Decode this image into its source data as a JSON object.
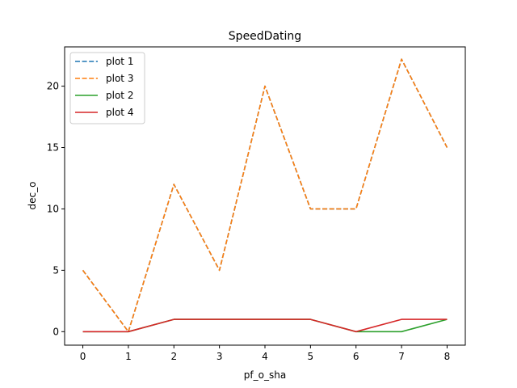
{
  "chart_data": {
    "type": "line",
    "title": "SpeedDating",
    "xlabel": "pf_o_sha",
    "ylabel": "dec_o",
    "x": [
      0,
      1,
      2,
      3,
      4,
      5,
      6,
      7,
      8
    ],
    "xlim": [
      -0.4,
      8.4
    ],
    "ylim": [
      -1.1,
      23.2
    ],
    "xticks": [
      0,
      1,
      2,
      3,
      4,
      5,
      6,
      7,
      8
    ],
    "yticks": [
      0,
      5,
      10,
      15,
      20
    ],
    "grid": false,
    "legend_position": "top-left",
    "series": [
      {
        "name": "plot 1",
        "color": "#1f77b4",
        "dash": "dashed",
        "values": [
          5,
          0,
          12,
          5,
          20,
          10,
          10,
          22.2,
          15
        ]
      },
      {
        "name": "plot 3",
        "color": "#ff7f0e",
        "dash": "dashed",
        "values": [
          5,
          0,
          12,
          5,
          20,
          10,
          10,
          22.2,
          15
        ]
      },
      {
        "name": "plot 2",
        "color": "#2ca02c",
        "dash": "solid",
        "values": [
          0,
          0,
          1,
          1,
          1,
          1,
          0,
          0,
          1
        ]
      },
      {
        "name": "plot 4",
        "color": "#d62728",
        "dash": "solid",
        "values": [
          0,
          0,
          1,
          1,
          1,
          1,
          0,
          1,
          1
        ]
      }
    ]
  }
}
